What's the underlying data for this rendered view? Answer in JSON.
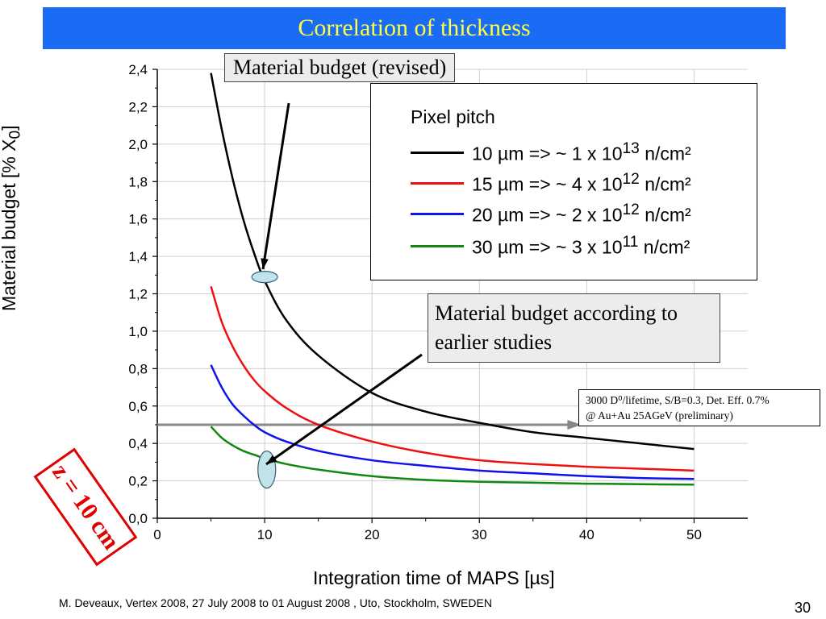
{
  "slide": {
    "title": "Correlation of thickness",
    "footer": "M. Deveaux, Vertex 2008, 27 July 2008 to 01 August 2008 , Uto, Stockholm, SWEDEN",
    "page_number": "30",
    "stamp": "z = 10 cm",
    "callout_revised": "Material budget (revised)",
    "callout_earlier": "Material budget according to earlier studies",
    "note_line1": "3000 D⁰/lifetime, S/B=0.3, Det. Eff. 0.7%",
    "note_line2": "@ Au+Au 25AGeV (preliminary)",
    "title_color": "#ffff44",
    "title_bg": "#1a6cf5"
  },
  "chart_data": {
    "type": "line",
    "title": "",
    "xlabel": "Integration time of MAPS [µs]",
    "ylabel_main": "Material budget [% X",
    "ylabel_sub": "0",
    "ylabel_end": "]",
    "xlim": [
      0,
      55
    ],
    "ylim": [
      0.0,
      2.4
    ],
    "x_ticks": [
      "0",
      "10",
      "20",
      "30",
      "40",
      "50"
    ],
    "y_ticks": [
      "0,0",
      "0,2",
      "0,4",
      "0,6",
      "0,8",
      "1,0",
      "1,2",
      "1,4",
      "1,6",
      "1,8",
      "2,0",
      "2,2",
      "2,4"
    ],
    "grid": true,
    "legend": {
      "title": "Pixel pitch",
      "placement": "top-right",
      "entries": [
        {
          "prefix": "10 µm => ~ 1 x 10",
          "exp": "13",
          "suffix": " n/cm²",
          "color": "#000000"
        },
        {
          "prefix": "15 µm => ~ 4 x 10",
          "exp": "12",
          "suffix": " n/cm²",
          "color": "#ee1111"
        },
        {
          "prefix": "20 µm => ~ 2 x 10",
          "exp": "12",
          "suffix": " n/cm²",
          "color": "#1111ee"
        },
        {
          "prefix": "30 µm => ~ 3 x 10",
          "exp": "11",
          "suffix": " n/cm²",
          "color": "#118811"
        }
      ]
    },
    "series": [
      {
        "name": "10 µm",
        "color": "#000000",
        "x": [
          5,
          6,
          7,
          8,
          9,
          10,
          12,
          15,
          20,
          25,
          30,
          35,
          40,
          45,
          50
        ],
        "y": [
          2.38,
          2.08,
          1.82,
          1.6,
          1.42,
          1.27,
          1.06,
          0.87,
          0.67,
          0.57,
          0.51,
          0.46,
          0.43,
          0.4,
          0.37
        ]
      },
      {
        "name": "15 µm",
        "color": "#ee1111",
        "x": [
          5,
          6,
          7,
          8,
          9,
          10,
          12,
          15,
          20,
          25,
          30,
          35,
          40,
          45,
          50
        ],
        "y": [
          1.24,
          1.05,
          0.92,
          0.82,
          0.74,
          0.68,
          0.59,
          0.5,
          0.41,
          0.35,
          0.31,
          0.29,
          0.275,
          0.265,
          0.255
        ]
      },
      {
        "name": "20 µm",
        "color": "#1111ee",
        "x": [
          5,
          6,
          7,
          8,
          9,
          10,
          12,
          15,
          20,
          25,
          30,
          35,
          40,
          45,
          50
        ],
        "y": [
          0.82,
          0.7,
          0.61,
          0.55,
          0.5,
          0.46,
          0.41,
          0.36,
          0.31,
          0.28,
          0.255,
          0.24,
          0.225,
          0.215,
          0.21
        ]
      },
      {
        "name": "30 µm",
        "color": "#118811",
        "x": [
          5,
          6,
          7,
          8,
          9,
          10,
          12,
          15,
          20,
          25,
          30,
          35,
          40,
          45,
          50
        ],
        "y": [
          0.49,
          0.43,
          0.39,
          0.36,
          0.34,
          0.32,
          0.29,
          0.26,
          0.225,
          0.205,
          0.195,
          0.19,
          0.185,
          0.182,
          0.18
        ]
      }
    ],
    "reference_line": {
      "y": 0.5,
      "color": "#888888"
    }
  }
}
